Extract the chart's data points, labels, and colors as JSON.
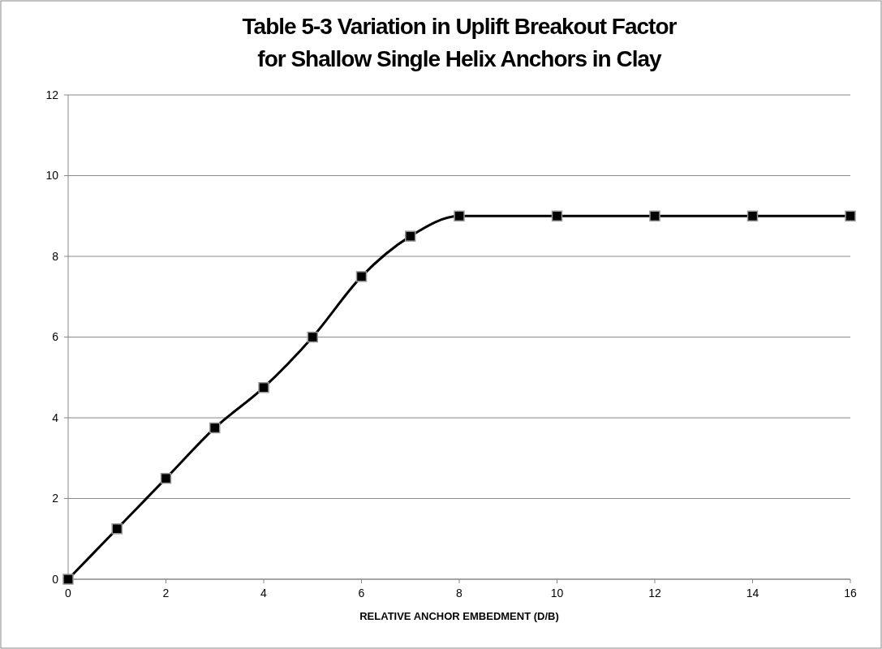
{
  "chart_data": {
    "type": "line",
    "title": "Table 5-3 Variation in Uplift Breakout Factor for Shallow Single Helix Anchors in Clay",
    "xlabel": "RELATIVE ANCHOR EMBEDMENT (D/B)",
    "x": [
      0,
      1,
      2,
      3,
      4,
      5,
      6,
      7,
      8,
      10,
      12,
      14,
      16
    ],
    "series": [
      {
        "color": "#000000",
        "values": [
          0,
          1.25,
          2.5,
          3.75,
          4.75,
          6,
          7.5,
          8.5,
          9,
          9,
          9,
          9,
          9
        ]
      }
    ],
    "xlim": [
      0,
      16
    ],
    "xticks": [
      0,
      2,
      4,
      6,
      8,
      10,
      12,
      14,
      16
    ],
    "ylim": [
      0,
      12
    ],
    "yticks": [
      0,
      2,
      4,
      6,
      8,
      10,
      12
    ],
    "grid": "y",
    "marker": "square",
    "line_style": "solid"
  }
}
